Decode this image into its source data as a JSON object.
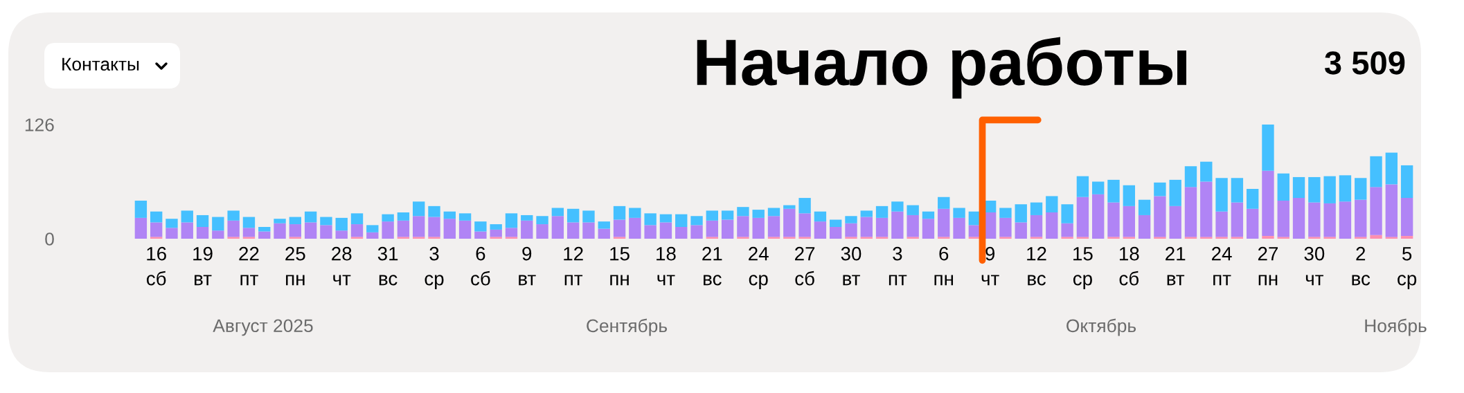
{
  "chart_data": {
    "type": "bar",
    "stacked": true,
    "categories": [
      null,
      "16\nсб",
      null,
      null,
      "19\nвт",
      null,
      null,
      "22\nпт",
      null,
      null,
      "25\nпн",
      null,
      null,
      "28\nчт",
      null,
      null,
      "31\nвс",
      null,
      null,
      "3\nср",
      null,
      null,
      "6\nсб",
      null,
      null,
      "9\nвт",
      null,
      null,
      "12\nпт",
      null,
      null,
      "15\nпн",
      null,
      null,
      "18\nчт",
      null,
      null,
      "21\nвс",
      null,
      null,
      "24\nср",
      null,
      null,
      "27\nсб",
      null,
      null,
      "30\nвт",
      null,
      null,
      "3\nпт",
      null,
      null,
      "6\nпн",
      null,
      null,
      "9\nчт",
      null,
      null,
      "12\nвс",
      null,
      null,
      "15\nср",
      null,
      null,
      "18\nсб",
      null,
      null,
      "21\nвт",
      null,
      null,
      "24\nпт",
      null,
      null,
      "27\nпн",
      null,
      null,
      "30\nчт",
      null,
      null,
      "2\nвс",
      null,
      null,
      "5\nср"
    ],
    "series": [
      {
        "color": "#ff8fb0",
        "values": [
          0,
          2,
          0,
          0,
          0,
          0,
          2,
          2,
          0,
          0,
          2,
          0,
          0,
          0,
          2,
          0,
          0,
          2,
          2,
          2,
          0,
          0,
          0,
          2,
          2,
          0,
          0,
          0,
          0,
          0,
          0,
          2,
          0,
          0,
          0,
          0,
          0,
          2,
          0,
          2,
          0,
          2,
          2,
          2,
          0,
          0,
          2,
          2,
          2,
          0,
          2,
          0,
          2,
          0,
          2,
          0,
          2,
          0,
          2,
          0,
          2,
          2,
          0,
          2,
          2,
          0,
          2,
          0,
          2,
          2,
          2,
          2,
          0,
          3,
          2,
          0,
          2,
          2,
          0,
          2,
          4,
          2,
          3
        ]
      },
      {
        "color": "#b084f5",
        "values": [
          23,
          16,
          12,
          18,
          13,
          9,
          18,
          10,
          8,
          17,
          14,
          18,
          15,
          9,
          14,
          7,
          19,
          18,
          23,
          22,
          22,
          20,
          8,
          8,
          10,
          20,
          16,
          25,
          18,
          18,
          11,
          19,
          23,
          15,
          18,
          13,
          15,
          18,
          21,
          23,
          23,
          23,
          31,
          26,
          19,
          13,
          15,
          22,
          21,
          30,
          24,
          22,
          31,
          23,
          13,
          29,
          21,
          18,
          24,
          29,
          15,
          44,
          49,
          38,
          34,
          26,
          45,
          36,
          55,
          61,
          28,
          38,
          33,
          72,
          40,
          45,
          38,
          37,
          41,
          41,
          53,
          58,
          42
        ]
      },
      {
        "color": "#45c0ff",
        "values": [
          19,
          12,
          10,
          13,
          13,
          15,
          11,
          12,
          5,
          5,
          8,
          12,
          9,
          14,
          12,
          8,
          8,
          9,
          16,
          12,
          8,
          8,
          11,
          6,
          16,
          6,
          9,
          9,
          15,
          13,
          8,
          15,
          11,
          13,
          9,
          14,
          10,
          11,
          10,
          10,
          9,
          9,
          4,
          17,
          11,
          8,
          8,
          7,
          13,
          11,
          11,
          8,
          13,
          11,
          15,
          13,
          11,
          20,
          14,
          18,
          21,
          23,
          14,
          25,
          23,
          17,
          15,
          29,
          23,
          22,
          37,
          27,
          22,
          51,
          30,
          23,
          28,
          30,
          29,
          24,
          34,
          35,
          36
        ]
      }
    ],
    "ylim": [
      0,
      126
    ],
    "yticks": [
      0,
      126
    ],
    "grid": false,
    "legend": false,
    "ref_lines": [
      {
        "axis": "x",
        "value": "9\nчт",
        "label": "Начало работы",
        "color": "#ff6000"
      }
    ],
    "annotations": [
      "Контакты",
      "3 509",
      "Август 2025",
      "Сентябрь",
      "Октябрь",
      "Ноябрь"
    ]
  }
}
